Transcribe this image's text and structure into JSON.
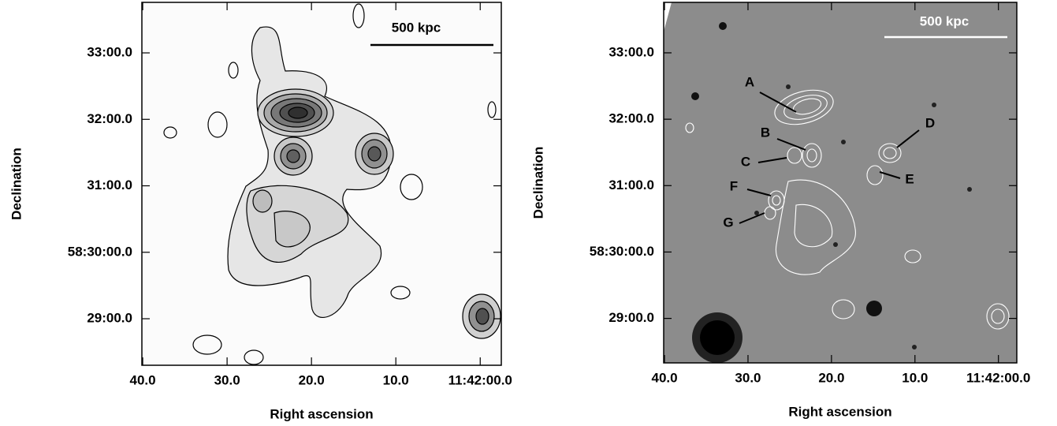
{
  "chart_data": [
    {
      "type": "image",
      "xlabel": "Right ascension",
      "ylabel": "Declination",
      "xlim": [
        40.1,
        -2.5
      ],
      "ylim": [
        28.3,
        33.76
      ],
      "xticks": [
        {
          "value": 40,
          "label": "40.0"
        },
        {
          "value": 30,
          "label": "30.0"
        },
        {
          "value": 20,
          "label": "20.0"
        },
        {
          "value": 10,
          "label": "10.0"
        },
        {
          "value": 0,
          "label": "11:42:00.0"
        }
      ],
      "yticks": [
        {
          "value": 33,
          "label": "33:00.0"
        },
        {
          "value": 32,
          "label": "32:00.0"
        },
        {
          "value": 31,
          "label": "31:00.0"
        },
        {
          "value": 30,
          "label": "58:30:00.0"
        },
        {
          "value": 29,
          "label": "29:00.0"
        }
      ],
      "annotations": [
        "500 kpc"
      ]
    },
    {
      "type": "image",
      "xlabel": "Right ascension",
      "ylabel": "Declination",
      "xlim": [
        40.1,
        -2.2
      ],
      "ylim": [
        28.33,
        33.76
      ],
      "xticks": [
        {
          "value": 40,
          "label": "40.0"
        },
        {
          "value": 30,
          "label": "30.0"
        },
        {
          "value": 20,
          "label": "20.0"
        },
        {
          "value": 10,
          "label": "10.0"
        },
        {
          "value": 0,
          "label": "11:42:00.0"
        }
      ],
      "yticks": [
        {
          "value": 33,
          "label": "33:00.0"
        },
        {
          "value": 32,
          "label": "32:00.0"
        },
        {
          "value": 31,
          "label": "31:00.0"
        },
        {
          "value": 30,
          "label": "58:30:00.0"
        },
        {
          "value": 29,
          "label": "29:00.0"
        }
      ],
      "annotations": [
        "500 kpc",
        "A",
        "B",
        "C",
        "D",
        "E",
        "F",
        "G"
      ]
    }
  ]
}
